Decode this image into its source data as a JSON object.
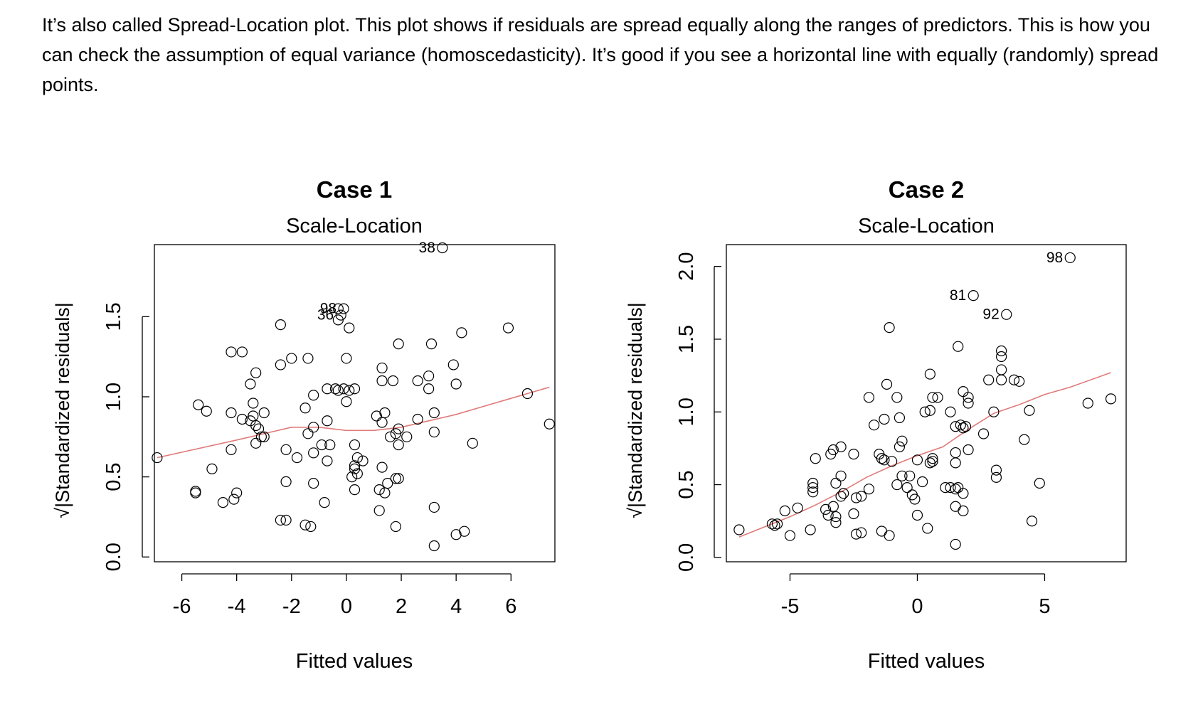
{
  "paragraph": "It’s also called Spread-Location plot. This plot shows if residuals are spread equally along the ranges of predictors. This is how you can check the assumption of equal variance (homoscedasticity). It’s good if you see a horizontal line with equally (randomly) spread points.",
  "colors": {
    "points": "#000000",
    "smooth_line": "#e07a7a",
    "frame": "#000000"
  },
  "chart_data": [
    {
      "type": "scatter",
      "title": "Case 1",
      "subtitle": "Scale-Location",
      "xlabel": "Fitted values",
      "ylabel": "√|Standardized residuals|",
      "xlim": [
        -7.0,
        7.6
      ],
      "ylim": [
        -0.03,
        1.95
      ],
      "xticks": [
        -6,
        -4,
        -2,
        0,
        2,
        4,
        6
      ],
      "xtick_labels": [
        "-6",
        "-4",
        "-2",
        "0",
        "2",
        "4",
        "6"
      ],
      "yticks": [
        0.0,
        0.5,
        1.0,
        1.5
      ],
      "ytick_labels": [
        "0.0",
        "0.5",
        "1.0",
        "1.5"
      ],
      "grid": false,
      "points": [
        [
          -6.9,
          0.62
        ],
        [
          -5.5,
          0.41
        ],
        [
          -5.5,
          0.4
        ],
        [
          -4.9,
          0.55
        ],
        [
          -4.5,
          0.34
        ],
        [
          -4.1,
          0.36
        ],
        [
          -4.0,
          0.4
        ],
        [
          -4.2,
          0.67
        ],
        [
          -5.4,
          0.95
        ],
        [
          -5.1,
          0.91
        ],
        [
          -4.2,
          0.9
        ],
        [
          -3.8,
          0.86
        ],
        [
          -3.5,
          0.85
        ],
        [
          -3.3,
          0.82
        ],
        [
          -3.2,
          0.8
        ],
        [
          -3.3,
          0.71
        ],
        [
          -3.0,
          0.75
        ],
        [
          -3.1,
          0.75
        ],
        [
          -3.4,
          0.88
        ],
        [
          -3.4,
          0.96
        ],
        [
          -3.0,
          0.9
        ],
        [
          -3.5,
          1.08
        ],
        [
          -3.3,
          1.15
        ],
        [
          -4.2,
          1.28
        ],
        [
          -3.8,
          1.28
        ],
        [
          -2.4,
          1.45
        ],
        [
          -2.4,
          1.2
        ],
        [
          -2.0,
          1.24
        ],
        [
          -1.4,
          1.24
        ],
        [
          -2.2,
          0.67
        ],
        [
          -1.8,
          0.62
        ],
        [
          -1.4,
          0.77
        ],
        [
          -1.2,
          0.81
        ],
        [
          -1.2,
          0.65
        ],
        [
          -0.9,
          0.7
        ],
        [
          -0.6,
          0.7
        ],
        [
          -0.7,
          0.6
        ],
        [
          -0.7,
          0.85
        ],
        [
          -2.4,
          0.23
        ],
        [
          -2.2,
          0.23
        ],
        [
          -1.5,
          0.2
        ],
        [
          -1.3,
          0.19
        ],
        [
          -0.8,
          0.34
        ],
        [
          -1.2,
          0.46
        ],
        [
          -2.2,
          0.47
        ],
        [
          -1.5,
          0.93
        ],
        [
          -1.2,
          1.01
        ],
        [
          -0.7,
          1.05
        ],
        [
          -0.4,
          1.05
        ],
        [
          -0.1,
          1.05
        ],
        [
          0.1,
          1.04
        ],
        [
          0.3,
          1.05
        ],
        [
          0.0,
          0.97
        ],
        [
          -0.3,
          1.04
        ],
        [
          0.0,
          1.24
        ],
        [
          -0.3,
          1.55
        ],
        [
          -0.3,
          1.48
        ],
        [
          0.1,
          1.43
        ],
        [
          0.3,
          0.7
        ],
        [
          0.4,
          0.62
        ],
        [
          0.3,
          0.55
        ],
        [
          0.2,
          0.5
        ],
        [
          0.3,
          0.57
        ],
        [
          0.4,
          0.52
        ],
        [
          0.3,
          0.42
        ],
        [
          0.6,
          0.6
        ],
        [
          1.1,
          0.88
        ],
        [
          1.3,
          0.84
        ],
        [
          1.4,
          0.9
        ],
        [
          1.6,
          0.75
        ],
        [
          1.9,
          0.7
        ],
        [
          1.8,
          0.77
        ],
        [
          2.2,
          0.75
        ],
        [
          1.9,
          0.8
        ],
        [
          2.6,
          0.86
        ],
        [
          3.2,
          0.9
        ],
        [
          3.2,
          0.78
        ],
        [
          1.3,
          0.56
        ],
        [
          1.5,
          0.46
        ],
        [
          1.8,
          0.49
        ],
        [
          1.9,
          0.49
        ],
        [
          1.2,
          0.42
        ],
        [
          1.4,
          0.4
        ],
        [
          1.2,
          0.29
        ],
        [
          1.8,
          0.19
        ],
        [
          1.3,
          1.18
        ],
        [
          1.3,
          1.1
        ],
        [
          1.7,
          1.1
        ],
        [
          1.9,
          1.33
        ],
        [
          2.6,
          1.1
        ],
        [
          3.0,
          1.13
        ],
        [
          3.0,
          1.05
        ],
        [
          3.1,
          1.33
        ],
        [
          3.9,
          1.2
        ],
        [
          4.0,
          1.08
        ],
        [
          4.2,
          1.4
        ],
        [
          4.6,
          0.71
        ],
        [
          3.2,
          0.31
        ],
        [
          3.2,
          0.07
        ],
        [
          4.0,
          0.14
        ],
        [
          4.3,
          0.16
        ],
        [
          5.9,
          1.43
        ],
        [
          6.6,
          1.02
        ],
        [
          7.4,
          0.83
        ],
        [
          3.5,
          1.93
        ],
        [
          -0.1,
          1.55
        ],
        [
          -0.2,
          1.51
        ]
      ],
      "labeled_points": [
        {
          "label": "38",
          "x": 3.5,
          "y": 1.93
        },
        {
          "label": "98",
          "x": -0.1,
          "y": 1.55
        },
        {
          "label": "36",
          "x": -0.2,
          "y": 1.51
        }
      ],
      "smooth_line": [
        [
          -6.9,
          0.62
        ],
        [
          -4,
          0.73
        ],
        [
          -2,
          0.81
        ],
        [
          -1,
          0.81
        ],
        [
          0,
          0.79
        ],
        [
          1,
          0.79
        ],
        [
          2,
          0.81
        ],
        [
          3,
          0.85
        ],
        [
          4,
          0.89
        ],
        [
          5,
          0.94
        ],
        [
          6,
          0.99
        ],
        [
          7.4,
          1.06
        ]
      ]
    },
    {
      "type": "scatter",
      "title": "Case 2",
      "subtitle": "Scale-Location",
      "xlabel": "Fitted values",
      "ylabel": "√|Standardized residuals|",
      "xlim": [
        -7.5,
        8.2
      ],
      "ylim": [
        -0.03,
        2.15
      ],
      "xticks": [
        -5,
        0,
        5
      ],
      "xtick_labels": [
        "-5",
        "0",
        "5"
      ],
      "yticks": [
        0.0,
        0.5,
        1.0,
        1.5,
        2.0
      ],
      "ytick_labels": [
        "0.0",
        "0.5",
        "1.0",
        "1.5",
        "2.0"
      ],
      "grid": false,
      "points": [
        [
          -7.0,
          0.19
        ],
        [
          -5.7,
          0.23
        ],
        [
          -5.5,
          0.23
        ],
        [
          -5.6,
          0.22
        ],
        [
          -5.2,
          0.32
        ],
        [
          -5.0,
          0.15
        ],
        [
          -4.7,
          0.34
        ],
        [
          -4.2,
          0.19
        ],
        [
          -4.1,
          0.51
        ],
        [
          -4.1,
          0.48
        ],
        [
          -4.1,
          0.45
        ],
        [
          -3.6,
          0.33
        ],
        [
          -3.5,
          0.29
        ],
        [
          -3.3,
          0.35
        ],
        [
          -3.2,
          0.24
        ],
        [
          -3.2,
          0.28
        ],
        [
          -3.0,
          0.42
        ],
        [
          -2.9,
          0.44
        ],
        [
          -3.2,
          0.51
        ],
        [
          -3.0,
          0.56
        ],
        [
          -2.5,
          0.3
        ],
        [
          -2.4,
          0.16
        ],
        [
          -2.2,
          0.17
        ],
        [
          -2.2,
          0.42
        ],
        [
          -2.4,
          0.41
        ],
        [
          -1.9,
          0.47
        ],
        [
          -4.0,
          0.68
        ],
        [
          -3.4,
          0.71
        ],
        [
          -3.3,
          0.74
        ],
        [
          -3.0,
          0.76
        ],
        [
          -2.5,
          0.71
        ],
        [
          -1.5,
          0.71
        ],
        [
          -1.4,
          0.68
        ],
        [
          -1.3,
          0.67
        ],
        [
          -1.0,
          0.66
        ],
        [
          -1.4,
          0.18
        ],
        [
          -1.1,
          0.15
        ],
        [
          -1.7,
          0.91
        ],
        [
          -1.3,
          0.95
        ],
        [
          -0.7,
          0.96
        ],
        [
          -0.6,
          0.8
        ],
        [
          -0.7,
          0.76
        ],
        [
          -0.8,
          0.5
        ],
        [
          -0.6,
          0.56
        ],
        [
          -0.3,
          0.56
        ],
        [
          -0.4,
          0.48
        ],
        [
          -0.2,
          0.43
        ],
        [
          -0.1,
          0.4
        ],
        [
          0.0,
          0.29
        ],
        [
          0.2,
          0.52
        ],
        [
          0.4,
          0.2
        ],
        [
          0.5,
          0.65
        ],
        [
          0.6,
          0.66
        ],
        [
          0.6,
          0.68
        ],
        [
          0.0,
          0.67
        ],
        [
          0.3,
          1.0
        ],
        [
          0.5,
          1.01
        ],
        [
          0.6,
          1.1
        ],
        [
          0.8,
          1.1
        ],
        [
          0.5,
          1.26
        ],
        [
          -1.9,
          1.1
        ],
        [
          -1.2,
          1.19
        ],
        [
          -0.8,
          1.1
        ],
        [
          -1.1,
          1.58
        ],
        [
          1.3,
          1.0
        ],
        [
          1.5,
          0.9
        ],
        [
          1.7,
          0.91
        ],
        [
          1.8,
          0.89
        ],
        [
          1.9,
          0.9
        ],
        [
          1.5,
          0.72
        ],
        [
          1.5,
          0.65
        ],
        [
          2.0,
          0.74
        ],
        [
          1.1,
          0.48
        ],
        [
          1.3,
          0.48
        ],
        [
          1.5,
          0.47
        ],
        [
          1.6,
          0.48
        ],
        [
          1.8,
          0.44
        ],
        [
          1.5,
          0.35
        ],
        [
          1.8,
          0.32
        ],
        [
          1.5,
          0.09
        ],
        [
          1.6,
          1.45
        ],
        [
          1.8,
          1.14
        ],
        [
          2.0,
          1.1
        ],
        [
          2.0,
          1.06
        ],
        [
          2.6,
          0.85
        ],
        [
          2.8,
          1.22
        ],
        [
          3.0,
          1.0
        ],
        [
          3.1,
          0.6
        ],
        [
          3.1,
          0.55
        ],
        [
          3.3,
          1.22
        ],
        [
          3.3,
          1.29
        ],
        [
          3.3,
          1.38
        ],
        [
          3.3,
          1.42
        ],
        [
          3.8,
          1.22
        ],
        [
          4.0,
          1.21
        ],
        [
          4.2,
          0.81
        ],
        [
          4.4,
          1.01
        ],
        [
          4.5,
          0.25
        ],
        [
          4.8,
          0.51
        ],
        [
          6.7,
          1.06
        ],
        [
          7.6,
          1.09
        ],
        [
          2.2,
          1.8
        ],
        [
          3.5,
          1.67
        ],
        [
          6.0,
          2.06
        ]
      ],
      "labeled_points": [
        {
          "label": "98",
          "x": 6.0,
          "y": 2.06
        },
        {
          "label": "81",
          "x": 2.2,
          "y": 1.8
        },
        {
          "label": "92",
          "x": 3.5,
          "y": 1.67
        }
      ],
      "smooth_line": [
        [
          -7.0,
          0.14
        ],
        [
          -5,
          0.28
        ],
        [
          -4,
          0.36
        ],
        [
          -3,
          0.45
        ],
        [
          -2,
          0.55
        ],
        [
          -1,
          0.63
        ],
        [
          0,
          0.7
        ],
        [
          1,
          0.76
        ],
        [
          2,
          0.88
        ],
        [
          3,
          0.99
        ],
        [
          4,
          1.05
        ],
        [
          5,
          1.12
        ],
        [
          6,
          1.17
        ],
        [
          7.6,
          1.27
        ]
      ]
    }
  ]
}
